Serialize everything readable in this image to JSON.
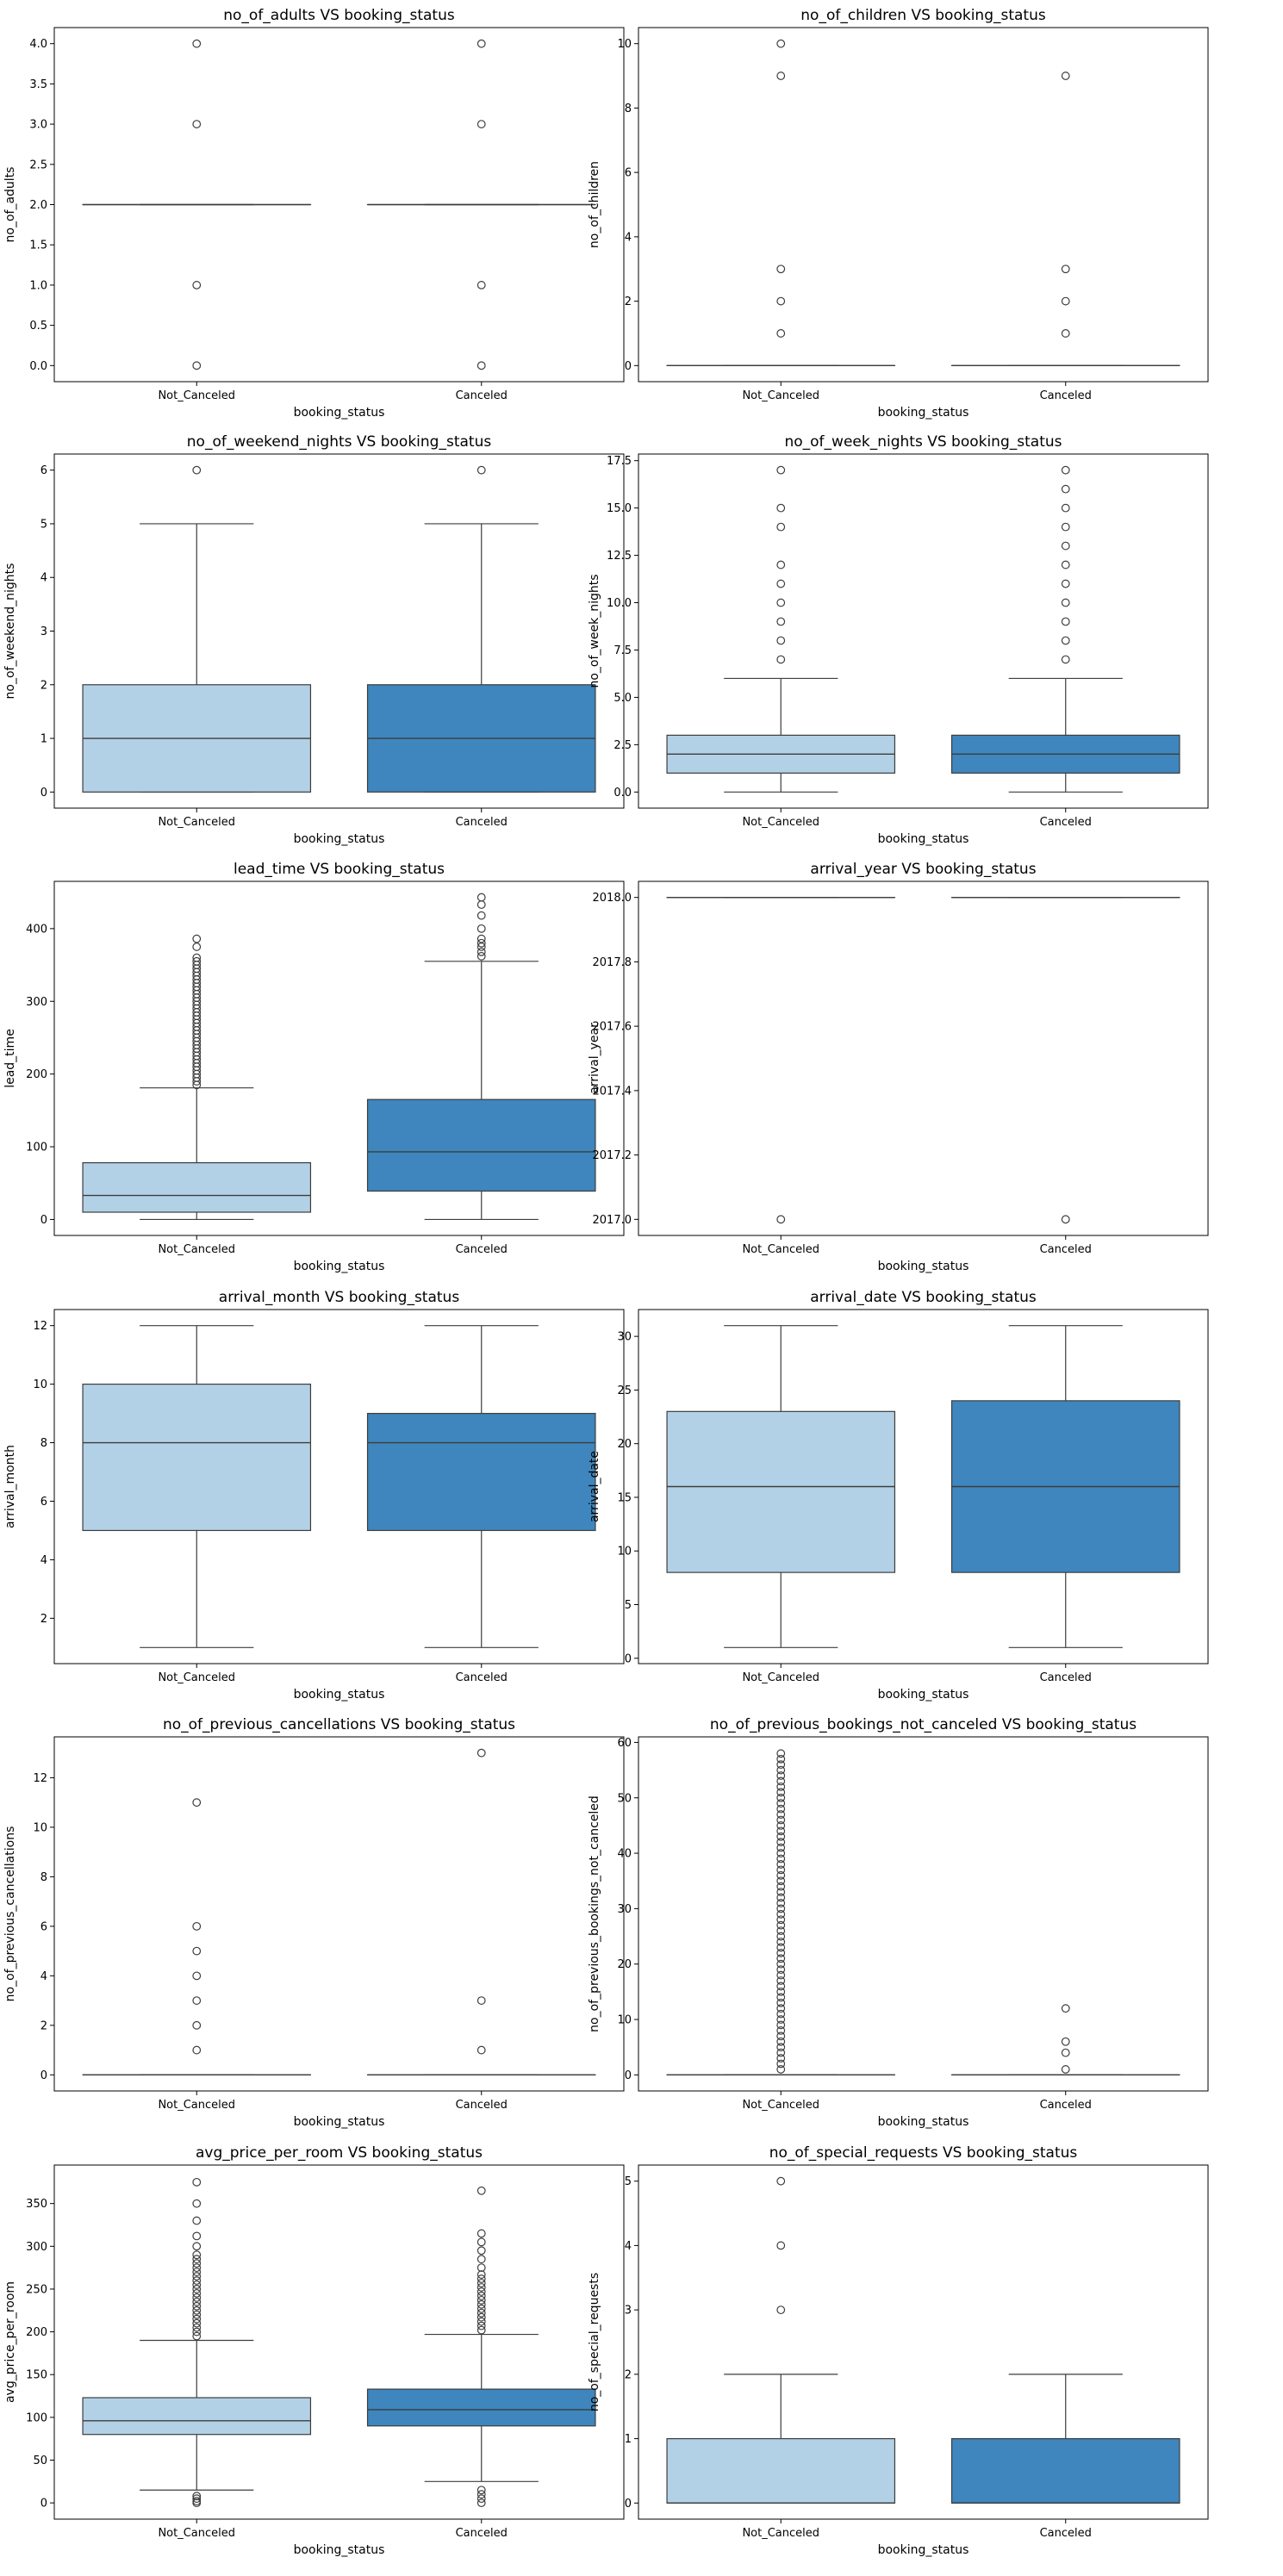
{
  "chart_data": [
    {
      "type": "box",
      "title": "no_of_adults  VS booking_status",
      "xlabel": "booking_status",
      "ylabel": "no_of_adults",
      "categories": [
        "Not_Canceled",
        "Canceled"
      ],
      "yticks": [
        "0.0",
        "0.5",
        "1.0",
        "1.5",
        "2.0",
        "2.5",
        "3.0",
        "3.5",
        "4.0"
      ],
      "ylim": [
        -0.2,
        4.2
      ],
      "boxes": [
        {
          "q1": 2,
          "median": 2,
          "q3": 2,
          "whisker_low": 2,
          "whisker_high": 2,
          "outliers": [
            0,
            1,
            3,
            4
          ]
        },
        {
          "q1": 2,
          "median": 2,
          "q3": 2,
          "whisker_low": 2,
          "whisker_high": 2,
          "outliers": [
            0,
            1,
            3,
            4
          ]
        }
      ]
    },
    {
      "type": "box",
      "title": "no_of_children  VS booking_status",
      "xlabel": "booking_status",
      "ylabel": "no_of_children",
      "categories": [
        "Not_Canceled",
        "Canceled"
      ],
      "yticks": [
        "0",
        "2",
        "4",
        "6",
        "8",
        "10"
      ],
      "ylim": [
        -0.5,
        10.5
      ],
      "boxes": [
        {
          "q1": 0,
          "median": 0,
          "q3": 0,
          "whisker_low": 0,
          "whisker_high": 0,
          "outliers": [
            1,
            2,
            3,
            9,
            10
          ]
        },
        {
          "q1": 0,
          "median": 0,
          "q3": 0,
          "whisker_low": 0,
          "whisker_high": 0,
          "outliers": [
            1,
            2,
            3,
            9
          ]
        }
      ]
    },
    {
      "type": "box",
      "title": "no_of_weekend_nights  VS booking_status",
      "xlabel": "booking_status",
      "ylabel": "no_of_weekend_nights",
      "categories": [
        "Not_Canceled",
        "Canceled"
      ],
      "yticks": [
        "0",
        "1",
        "2",
        "3",
        "4",
        "5",
        "6"
      ],
      "ylim": [
        -0.3,
        6.3
      ],
      "boxes": [
        {
          "q1": 0,
          "median": 1,
          "q3": 2,
          "whisker_low": 0,
          "whisker_high": 5,
          "outliers": [
            6
          ]
        },
        {
          "q1": 0,
          "median": 1,
          "q3": 2,
          "whisker_low": 0,
          "whisker_high": 5,
          "outliers": [
            6
          ]
        }
      ]
    },
    {
      "type": "box",
      "title": "no_of_week_nights  VS booking_status",
      "xlabel": "booking_status",
      "ylabel": "no_of_week_nights",
      "categories": [
        "Not_Canceled",
        "Canceled"
      ],
      "yticks": [
        "0.0",
        "2.5",
        "5.0",
        "7.5",
        "10.0",
        "12.5",
        "15.0",
        "17.5"
      ],
      "ylim": [
        -0.85,
        17.85
      ],
      "boxes": [
        {
          "q1": 1,
          "median": 2,
          "q3": 3,
          "whisker_low": 0,
          "whisker_high": 6,
          "outliers": [
            7,
            8,
            9,
            10,
            11,
            12,
            14,
            15,
            17
          ]
        },
        {
          "q1": 1,
          "median": 2,
          "q3": 3,
          "whisker_low": 0,
          "whisker_high": 6,
          "outliers": [
            7,
            8,
            9,
            10,
            11,
            12,
            13,
            14,
            15,
            16,
            17
          ]
        }
      ]
    },
    {
      "type": "box",
      "title": "lead_time  VS booking_status",
      "xlabel": "booking_status",
      "ylabel": "lead_time",
      "categories": [
        "Not_Canceled",
        "Canceled"
      ],
      "yticks": [
        "0",
        "100",
        "200",
        "300",
        "400"
      ],
      "ylim": [
        -22,
        465
      ],
      "boxes": [
        {
          "q1": 10,
          "median": 33,
          "q3": 78,
          "whisker_low": 0,
          "whisker_high": 181,
          "outliers": [
            185,
            190,
            195,
            200,
            205,
            210,
            215,
            220,
            225,
            230,
            235,
            240,
            245,
            250,
            255,
            260,
            265,
            270,
            275,
            280,
            285,
            290,
            295,
            300,
            305,
            310,
            315,
            320,
            325,
            330,
            335,
            340,
            345,
            350,
            355,
            360,
            375,
            386
          ]
        },
        {
          "q1": 39,
          "median": 93,
          "q3": 165,
          "whisker_low": 0,
          "whisker_high": 355,
          "outliers": [
            362,
            368,
            375,
            380,
            386,
            400,
            418,
            433,
            443
          ]
        }
      ]
    },
    {
      "type": "box",
      "title": "arrival_year  VS booking_status",
      "xlabel": "booking_status",
      "ylabel": "arrival_year",
      "categories": [
        "Not_Canceled",
        "Canceled"
      ],
      "yticks": [
        "2017.0",
        "2017.2",
        "2017.4",
        "2017.6",
        "2017.8",
        "2018.0"
      ],
      "ylim": [
        2016.95,
        2018.05
      ],
      "boxes": [
        {
          "q1": 2018,
          "median": 2018,
          "q3": 2018,
          "whisker_low": 2018,
          "whisker_high": 2018,
          "outliers": [
            2017
          ]
        },
        {
          "q1": 2018,
          "median": 2018,
          "q3": 2018,
          "whisker_low": 2018,
          "whisker_high": 2018,
          "outliers": [
            2017
          ]
        }
      ]
    },
    {
      "type": "box",
      "title": "arrival_month  VS booking_status",
      "xlabel": "booking_status",
      "ylabel": "arrival_month",
      "categories": [
        "Not_Canceled",
        "Canceled"
      ],
      "yticks": [
        "2",
        "4",
        "6",
        "8",
        "10",
        "12"
      ],
      "ylim": [
        0.45,
        12.55
      ],
      "boxes": [
        {
          "q1": 5,
          "median": 8,
          "q3": 10,
          "whisker_low": 1,
          "whisker_high": 12,
          "outliers": []
        },
        {
          "q1": 5,
          "median": 8,
          "q3": 9,
          "whisker_low": 1,
          "whisker_high": 12,
          "outliers": []
        }
      ]
    },
    {
      "type": "box",
      "title": "arrival_date  VS booking_status",
      "xlabel": "booking_status",
      "ylabel": "arrival_date",
      "categories": [
        "Not_Canceled",
        "Canceled"
      ],
      "yticks": [
        "0",
        "5",
        "10",
        "15",
        "20",
        "25",
        "30"
      ],
      "ylim": [
        -0.5,
        32.5
      ],
      "boxes": [
        {
          "q1": 8,
          "median": 16,
          "q3": 23,
          "whisker_low": 1,
          "whisker_high": 31,
          "outliers": []
        },
        {
          "q1": 8,
          "median": 16,
          "q3": 24,
          "whisker_low": 1,
          "whisker_high": 31,
          "outliers": []
        }
      ]
    },
    {
      "type": "box",
      "title": "no_of_previous_cancellations  VS booking_status",
      "xlabel": "booking_status",
      "ylabel": "no_of_previous_cancellations",
      "categories": [
        "Not_Canceled",
        "Canceled"
      ],
      "yticks": [
        "0",
        "2",
        "4",
        "6",
        "8",
        "10",
        "12"
      ],
      "ylim": [
        -0.65,
        13.65
      ],
      "boxes": [
        {
          "q1": 0,
          "median": 0,
          "q3": 0,
          "whisker_low": 0,
          "whisker_high": 0,
          "outliers": [
            1,
            2,
            3,
            4,
            5,
            6,
            11
          ]
        },
        {
          "q1": 0,
          "median": 0,
          "q3": 0,
          "whisker_low": 0,
          "whisker_high": 0,
          "outliers": [
            1,
            3,
            13
          ]
        }
      ]
    },
    {
      "type": "box",
      "title": "no_of_previous_bookings_not_canceled  VS booking_status",
      "xlabel": "booking_status",
      "ylabel": "no_of_previous_bookings_not_canceled",
      "categories": [
        "Not_Canceled",
        "Canceled"
      ],
      "yticks": [
        "0",
        "10",
        "20",
        "30",
        "40",
        "50",
        "60"
      ],
      "ylim": [
        -2.9,
        61
      ],
      "boxes": [
        {
          "q1": 0,
          "median": 0,
          "q3": 0,
          "whisker_low": 0,
          "whisker_high": 0,
          "outliers": [
            1,
            2,
            3,
            4,
            5,
            6,
            7,
            8,
            9,
            10,
            11,
            12,
            13,
            14,
            15,
            16,
            17,
            18,
            19,
            20,
            21,
            22,
            23,
            24,
            25,
            26,
            27,
            28,
            29,
            30,
            31,
            32,
            33,
            34,
            35,
            36,
            37,
            38,
            39,
            40,
            41,
            42,
            43,
            44,
            45,
            46,
            47,
            48,
            49,
            50,
            51,
            52,
            53,
            54,
            55,
            56,
            57,
            58
          ]
        },
        {
          "q1": 0,
          "median": 0,
          "q3": 0,
          "whisker_low": 0,
          "whisker_high": 0,
          "outliers": [
            1,
            4,
            6,
            12
          ]
        }
      ]
    },
    {
      "type": "box",
      "title": "avg_price_per_room  VS booking_status",
      "xlabel": "booking_status",
      "ylabel": "avg_price_per_room",
      "categories": [
        "Not_Canceled",
        "Canceled"
      ],
      "yticks": [
        "0",
        "50",
        "100",
        "150",
        "200",
        "250",
        "300",
        "350"
      ],
      "ylim": [
        -19,
        395
      ],
      "boxes": [
        {
          "q1": 80,
          "median": 96,
          "q3": 123,
          "whisker_low": 15,
          "whisker_high": 190,
          "outliers": [
            0,
            2,
            5,
            8,
            195,
            200,
            205,
            210,
            215,
            220,
            225,
            230,
            235,
            240,
            245,
            250,
            255,
            260,
            265,
            270,
            275,
            280,
            285,
            290,
            300,
            312,
            330,
            350,
            375
          ]
        },
        {
          "q1": 90,
          "median": 109,
          "q3": 133,
          "whisker_low": 25,
          "whisker_high": 197,
          "outliers": [
            0,
            5,
            10,
            15,
            202,
            207,
            212,
            217,
            222,
            227,
            232,
            237,
            242,
            247,
            252,
            257,
            262,
            267,
            275,
            285,
            295,
            305,
            315,
            365
          ]
        }
      ]
    },
    {
      "type": "box",
      "title": "no_of_special_requests  VS booking_status",
      "xlabel": "booking_status",
      "ylabel": "no_of_special_requests",
      "categories": [
        "Not_Canceled",
        "Canceled"
      ],
      "yticks": [
        "0",
        "1",
        "2",
        "3",
        "4",
        "5"
      ],
      "ylim": [
        -0.25,
        5.25
      ],
      "boxes": [
        {
          "q1": 0,
          "median": 0,
          "q3": 1,
          "whisker_low": 0,
          "whisker_high": 2,
          "outliers": [
            3,
            4,
            5
          ]
        },
        {
          "q1": 0,
          "median": 0,
          "q3": 1,
          "whisker_low": 0,
          "whisker_high": 2,
          "outliers": []
        }
      ]
    }
  ],
  "colors": {
    "not_canceled_box": "#b3d1e6",
    "canceled_box": "#3e86bd",
    "line": "#3d3d3d"
  }
}
